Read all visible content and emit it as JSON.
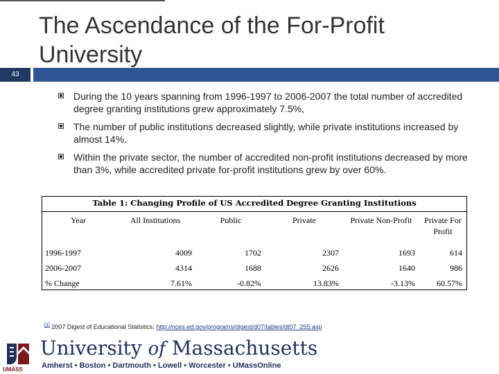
{
  "slide": {
    "title": "The Ascendance of the For-Profit University",
    "number": "43"
  },
  "bullets": [
    "During the 10 years spanning from 1996-1997 to 2006-2007 the total number of accredited degree granting institutions grew approximately 7.5%,",
    "The number of public institutions decreased slightly, while private institutions increased by almost 14%.",
    "Within the private sector, the number of accredited non-profit institutions decreased by more than 3%, while accredited private for-profit institutions grew by over 60%."
  ],
  "table": {
    "caption": "Table 1: Changing Profile of US Accredited Degree Granting Institutions",
    "headers": [
      "Year",
      "All Institutions",
      "Public",
      "Private",
      "Private Non-Profit",
      "Private For Profit"
    ],
    "rows": [
      [
        "1996-1997",
        "4009",
        "1702",
        "2307",
        "1693",
        "614"
      ],
      [
        "2006-2007",
        "4314",
        "1688",
        "2626",
        "1640",
        "986"
      ],
      [
        "% Change",
        "7.61%",
        "-0.82%",
        "13.83%",
        "-3.13%",
        "60.57%"
      ]
    ]
  },
  "footnote": {
    "marker": "[1]",
    "text": "2007 Digest of Educational Statistics: ",
    "url": "http://nces.ed.gov/programs/digest/d07/tables/dt07_255.asp"
  },
  "logo": {
    "badge": "UMASS",
    "university_prefix": "University ",
    "university_of": "of",
    "university_suffix": " Massachusetts",
    "campuses": "Amherst • Boston • Dartmouth • Lowell • Worcester • UMassOnline"
  },
  "colors": {
    "band_dark": "#1f3864",
    "band_light": "#2f5496",
    "logo_navy": "#1f2f5c",
    "logo_red": "#7b1a1a"
  }
}
